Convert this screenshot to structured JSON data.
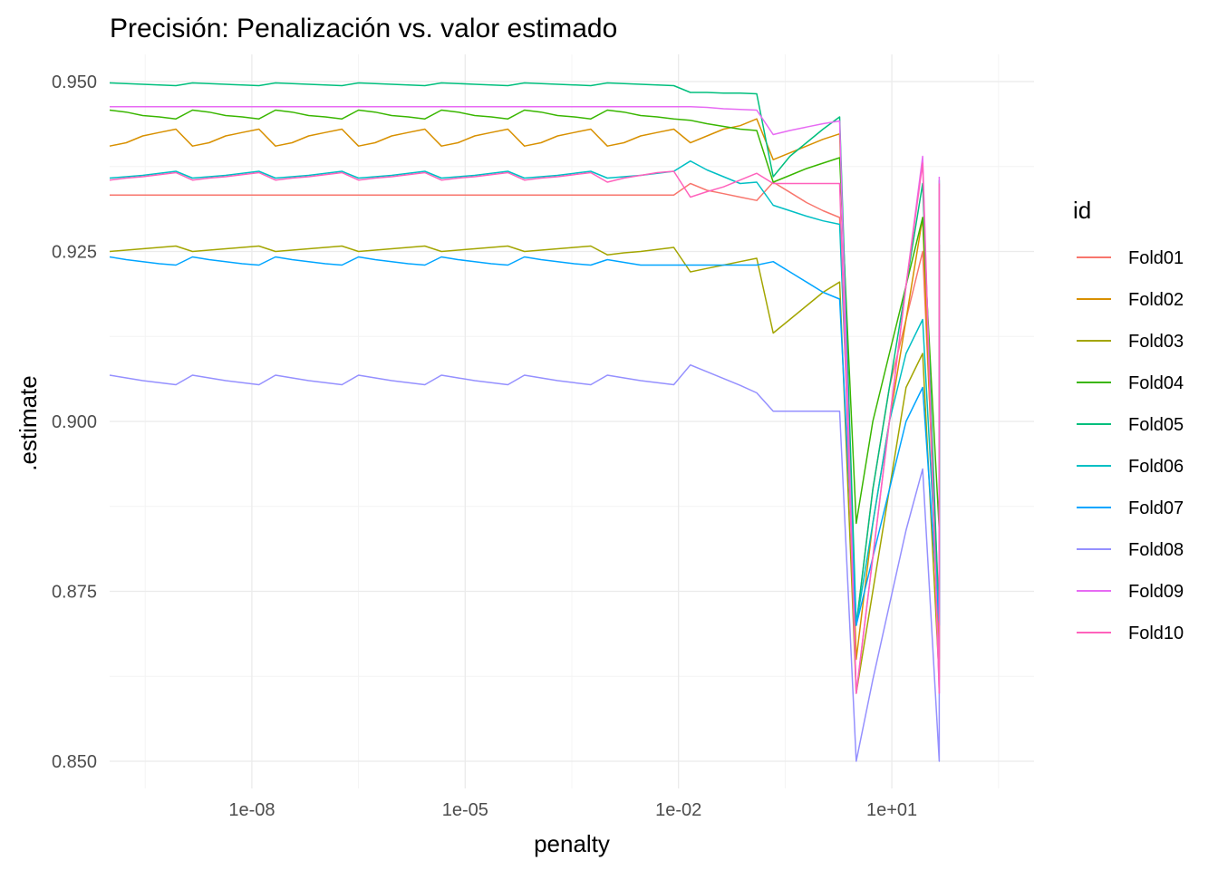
{
  "chart_data": {
    "type": "line",
    "title": "Precisión: Penalización vs. valor estimado",
    "xlabel": "penalty",
    "ylabel": ".estimate",
    "x_scale": "log10",
    "xlim": [
      1e-10,
      1000
    ],
    "ylim": [
      0.846,
      0.954
    ],
    "x_ticks": [
      1e-08,
      1e-05,
      0.01,
      10
    ],
    "x_tick_labels": [
      "1e-08",
      "1e-05",
      "1e-02",
      "1e+01"
    ],
    "y_ticks": [
      0.85,
      0.875,
      0.9,
      0.925,
      0.95
    ],
    "y_tick_labels": [
      "0.850",
      "0.875",
      "0.900",
      "0.925",
      "0.950"
    ],
    "grid": true,
    "legend": {
      "title": "id",
      "position": "right"
    },
    "penalty": [
      1e-10,
      1.46e-09,
      2.15e-08,
      3.16e-07,
      4.64e-06,
      6.81e-05,
      0.001,
      0.0147,
      0.215,
      3.16,
      46.4
    ],
    "penalty_note": "each fold has 5 estimates per penalty (5 mixtures), drawn as a sawtooth inside each penalty step",
    "series": [
      {
        "name": "Fold01",
        "color": "#F8766D",
        "values": [
          [
            0.9333,
            0.9333,
            0.9333,
            0.9333,
            0.9333
          ],
          [
            0.9333,
            0.9333,
            0.9333,
            0.9333,
            0.9333
          ],
          [
            0.9333,
            0.9333,
            0.9333,
            0.9333,
            0.9333
          ],
          [
            0.9333,
            0.9333,
            0.9333,
            0.9333,
            0.9333
          ],
          [
            0.9333,
            0.9333,
            0.9333,
            0.9333,
            0.9333
          ],
          [
            0.9333,
            0.9333,
            0.9333,
            0.9333,
            0.9333
          ],
          [
            0.9333,
            0.9333,
            0.9333,
            0.9333,
            0.9333
          ],
          [
            0.935,
            0.934,
            0.9335,
            0.933,
            0.9325
          ],
          [
            0.9352,
            0.9337,
            0.9322,
            0.931,
            0.93
          ],
          [
            0.87,
            0.89,
            0.905,
            0.915,
            0.925
          ],
          [
            0.872,
            0.888,
            0.902,
            0.914,
            0.924
          ]
        ]
      },
      {
        "name": "Fold02",
        "color": "#D89000",
        "values": [
          [
            0.9405,
            0.941,
            0.942,
            0.9425,
            0.943
          ],
          [
            0.9405,
            0.941,
            0.942,
            0.9425,
            0.943
          ],
          [
            0.9405,
            0.941,
            0.942,
            0.9425,
            0.943
          ],
          [
            0.9405,
            0.941,
            0.942,
            0.9425,
            0.943
          ],
          [
            0.9405,
            0.941,
            0.942,
            0.9425,
            0.943
          ],
          [
            0.9405,
            0.941,
            0.942,
            0.9425,
            0.943
          ],
          [
            0.9405,
            0.941,
            0.942,
            0.9425,
            0.943
          ],
          [
            0.941,
            0.942,
            0.943,
            0.9435,
            0.9445
          ],
          [
            0.9385,
            0.9395,
            0.9405,
            0.9415,
            0.9423
          ],
          [
            0.865,
            0.885,
            0.9,
            0.915,
            0.93
          ],
          [
            0.865,
            0.88,
            0.895,
            0.91,
            0.925
          ]
        ]
      },
      {
        "name": "Fold03",
        "color": "#A3A500",
        "values": [
          [
            0.925,
            0.9252,
            0.9254,
            0.9256,
            0.9258
          ],
          [
            0.925,
            0.9252,
            0.9254,
            0.9256,
            0.9258
          ],
          [
            0.925,
            0.9252,
            0.9254,
            0.9256,
            0.9258
          ],
          [
            0.925,
            0.9252,
            0.9254,
            0.9256,
            0.9258
          ],
          [
            0.925,
            0.9252,
            0.9254,
            0.9256,
            0.9258
          ],
          [
            0.925,
            0.9252,
            0.9254,
            0.9256,
            0.9258
          ],
          [
            0.9245,
            0.9248,
            0.925,
            0.9253,
            0.9256
          ],
          [
            0.922,
            0.9225,
            0.923,
            0.9235,
            0.924
          ],
          [
            0.913,
            0.915,
            0.917,
            0.919,
            0.9205
          ],
          [
            0.86,
            0.875,
            0.89,
            0.905,
            0.91
          ],
          [
            0.862,
            0.876,
            0.889,
            0.9,
            0.9105
          ]
        ]
      },
      {
        "name": "Fold04",
        "color": "#39B600",
        "values": [
          [
            0.9458,
            0.9455,
            0.945,
            0.9448,
            0.9445
          ],
          [
            0.9458,
            0.9455,
            0.945,
            0.9448,
            0.9445
          ],
          [
            0.9458,
            0.9455,
            0.945,
            0.9448,
            0.9445
          ],
          [
            0.9458,
            0.9455,
            0.945,
            0.9448,
            0.9445
          ],
          [
            0.9458,
            0.9455,
            0.945,
            0.9448,
            0.9445
          ],
          [
            0.9458,
            0.9455,
            0.945,
            0.9448,
            0.9445
          ],
          [
            0.9458,
            0.9455,
            0.945,
            0.9448,
            0.9445
          ],
          [
            0.9443,
            0.9438,
            0.9434,
            0.943,
            0.9428
          ],
          [
            0.9352,
            0.9362,
            0.9372,
            0.938,
            0.9388
          ],
          [
            0.885,
            0.9,
            0.91,
            0.92,
            0.93
          ],
          [
            0.884,
            0.898,
            0.908,
            0.918,
            0.926
          ]
        ]
      },
      {
        "name": "Fold05",
        "color": "#00BF7D",
        "values": [
          [
            0.9498,
            0.9497,
            0.9496,
            0.9495,
            0.9494
          ],
          [
            0.9498,
            0.9497,
            0.9496,
            0.9495,
            0.9494
          ],
          [
            0.9498,
            0.9497,
            0.9496,
            0.9495,
            0.9494
          ],
          [
            0.9498,
            0.9497,
            0.9496,
            0.9495,
            0.9494
          ],
          [
            0.9498,
            0.9497,
            0.9496,
            0.9495,
            0.9494
          ],
          [
            0.9498,
            0.9497,
            0.9496,
            0.9495,
            0.9494
          ],
          [
            0.9498,
            0.9497,
            0.9496,
            0.9495,
            0.9494
          ],
          [
            0.9484,
            0.9484,
            0.9483,
            0.9483,
            0.9482
          ],
          [
            0.936,
            0.939,
            0.941,
            0.943,
            0.9448
          ],
          [
            0.87,
            0.89,
            0.905,
            0.92,
            0.935
          ],
          [
            0.87,
            0.89,
            0.905,
            0.92,
            0.9355
          ]
        ]
      },
      {
        "name": "Fold06",
        "color": "#00BFC4",
        "values": [
          [
            0.9358,
            0.936,
            0.9362,
            0.9365,
            0.9368
          ],
          [
            0.9358,
            0.936,
            0.9362,
            0.9365,
            0.9368
          ],
          [
            0.9358,
            0.936,
            0.9362,
            0.9365,
            0.9368
          ],
          [
            0.9358,
            0.936,
            0.9362,
            0.9365,
            0.9368
          ],
          [
            0.9358,
            0.936,
            0.9362,
            0.9365,
            0.9368
          ],
          [
            0.9358,
            0.936,
            0.9362,
            0.9365,
            0.9368
          ],
          [
            0.9358,
            0.936,
            0.9362,
            0.9365,
            0.9368
          ],
          [
            0.9383,
            0.937,
            0.936,
            0.935,
            0.9352
          ],
          [
            0.9318,
            0.931,
            0.9302,
            0.9295,
            0.929
          ],
          [
            0.87,
            0.885,
            0.9,
            0.91,
            0.915
          ],
          [
            0.87,
            0.885,
            0.9,
            0.91,
            0.915
          ]
        ]
      },
      {
        "name": "Fold07",
        "color": "#00A5FF",
        "values": [
          [
            0.9242,
            0.9238,
            0.9235,
            0.9232,
            0.923
          ],
          [
            0.9242,
            0.9238,
            0.9235,
            0.9232,
            0.923
          ],
          [
            0.9242,
            0.9238,
            0.9235,
            0.9232,
            0.923
          ],
          [
            0.9242,
            0.9238,
            0.9235,
            0.9232,
            0.923
          ],
          [
            0.9242,
            0.9238,
            0.9235,
            0.9232,
            0.923
          ],
          [
            0.9242,
            0.9238,
            0.9235,
            0.9232,
            0.923
          ],
          [
            0.9238,
            0.9234,
            0.923,
            0.923,
            0.923
          ],
          [
            0.923,
            0.923,
            0.923,
            0.923,
            0.923
          ],
          [
            0.9235,
            0.922,
            0.9205,
            0.919,
            0.918
          ],
          [
            0.87,
            0.88,
            0.89,
            0.9,
            0.905
          ],
          [
            0.87,
            0.88,
            0.89,
            0.9,
            0.908
          ]
        ]
      },
      {
        "name": "Fold08",
        "color": "#9590FF",
        "values": [
          [
            0.9068,
            0.9064,
            0.906,
            0.9057,
            0.9054
          ],
          [
            0.9068,
            0.9064,
            0.906,
            0.9057,
            0.9054
          ],
          [
            0.9068,
            0.9064,
            0.906,
            0.9057,
            0.9054
          ],
          [
            0.9068,
            0.9064,
            0.906,
            0.9057,
            0.9054
          ],
          [
            0.9068,
            0.9064,
            0.906,
            0.9057,
            0.9054
          ],
          [
            0.9068,
            0.9064,
            0.906,
            0.9057,
            0.9054
          ],
          [
            0.9068,
            0.9064,
            0.906,
            0.9057,
            0.9054
          ],
          [
            0.9083,
            0.9073,
            0.9063,
            0.9053,
            0.9042
          ],
          [
            0.9015,
            0.9015,
            0.9015,
            0.9015,
            0.9015
          ],
          [
            0.85,
            0.862,
            0.873,
            0.884,
            0.893
          ],
          [
            0.85,
            0.861,
            0.871,
            0.881,
            0.889
          ]
        ]
      },
      {
        "name": "Fold09",
        "color": "#E76BF3",
        "values": [
          [
            0.9463,
            0.9463,
            0.9463,
            0.9463,
            0.9463
          ],
          [
            0.9463,
            0.9463,
            0.9463,
            0.9463,
            0.9463
          ],
          [
            0.9463,
            0.9463,
            0.9463,
            0.9463,
            0.9463
          ],
          [
            0.9463,
            0.9463,
            0.9463,
            0.9463,
            0.9463
          ],
          [
            0.9463,
            0.9463,
            0.9463,
            0.9463,
            0.9463
          ],
          [
            0.9463,
            0.9463,
            0.9463,
            0.9463,
            0.9463
          ],
          [
            0.9463,
            0.9463,
            0.9463,
            0.9463,
            0.9463
          ],
          [
            0.9463,
            0.9462,
            0.946,
            0.9459,
            0.9458
          ],
          [
            0.9422,
            0.9428,
            0.9433,
            0.9438,
            0.9442
          ],
          [
            0.86,
            0.88,
            0.9,
            0.92,
            0.939
          ],
          [
            0.86,
            0.88,
            0.9,
            0.92,
            0.936
          ]
        ]
      },
      {
        "name": "Fold10",
        "color": "#FF62BC",
        "values": [
          [
            0.9355,
            0.9358,
            0.936,
            0.9363,
            0.9366
          ],
          [
            0.9355,
            0.9358,
            0.936,
            0.9363,
            0.9366
          ],
          [
            0.9355,
            0.9358,
            0.936,
            0.9363,
            0.9366
          ],
          [
            0.9355,
            0.9358,
            0.936,
            0.9363,
            0.9366
          ],
          [
            0.9355,
            0.9358,
            0.936,
            0.9363,
            0.9366
          ],
          [
            0.9355,
            0.9358,
            0.936,
            0.9363,
            0.9366
          ],
          [
            0.9352,
            0.9358,
            0.9362,
            0.9366,
            0.9368
          ],
          [
            0.933,
            0.9338,
            0.9345,
            0.9355,
            0.9365
          ],
          [
            0.935,
            0.935,
            0.935,
            0.935,
            0.935
          ],
          [
            0.86,
            0.88,
            0.9,
            0.92,
            0.938
          ],
          [
            0.86,
            0.88,
            0.9,
            0.92,
            0.935
          ]
        ]
      }
    ]
  }
}
